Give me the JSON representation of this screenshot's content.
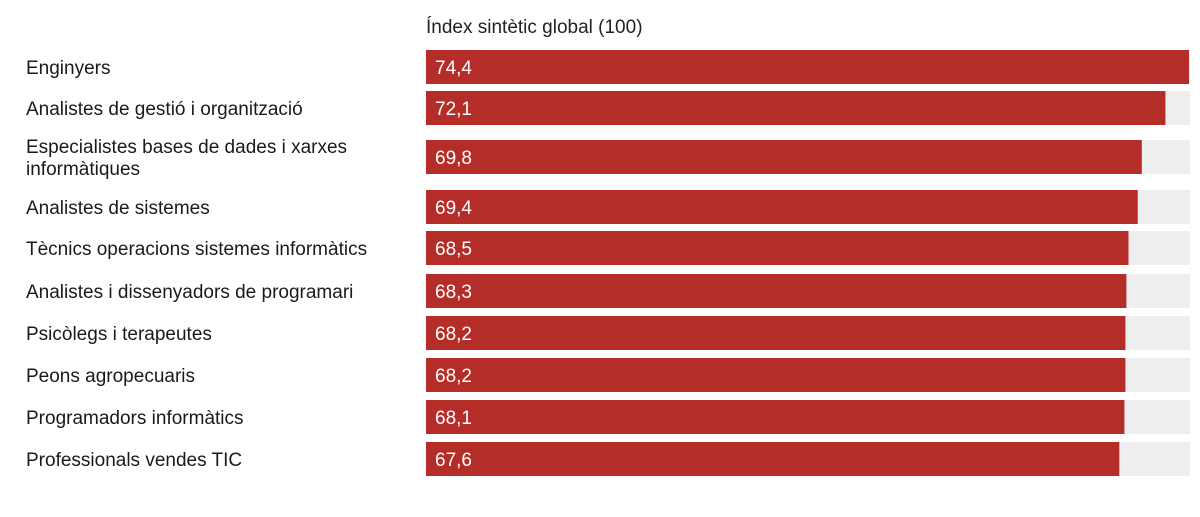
{
  "chart_data": {
    "type": "bar",
    "orientation": "horizontal",
    "column_header": "Índex sintètic global (100)",
    "categories": [
      "Enginyers",
      "Analistes de gestió i organització",
      "Especialistes bases de dades i xarxes informàtiques",
      "Analistes de sistemes",
      "Tècnics operacions sistemes informàtics",
      "Analistes i dissenyadors de programari",
      "Psicòlegs i terapeutes",
      "Peons agropecuaris",
      "Programadors informàtics",
      "Professionals vendes TIC"
    ],
    "values": [
      74.4,
      72.1,
      69.8,
      69.4,
      68.5,
      68.3,
      68.2,
      68.2,
      68.1,
      67.6
    ],
    "value_labels": [
      "74,4",
      "72,1",
      "69,8",
      "69,4",
      "68,5",
      "68,3",
      "68,2",
      "68,2",
      "68,1",
      "67,6"
    ],
    "xlim": [
      0,
      74.4
    ],
    "bar_color": "#b52d29",
    "track_color": "#eeeeee",
    "label_color": "#ffffff",
    "text_color": "#1a1a1a"
  }
}
